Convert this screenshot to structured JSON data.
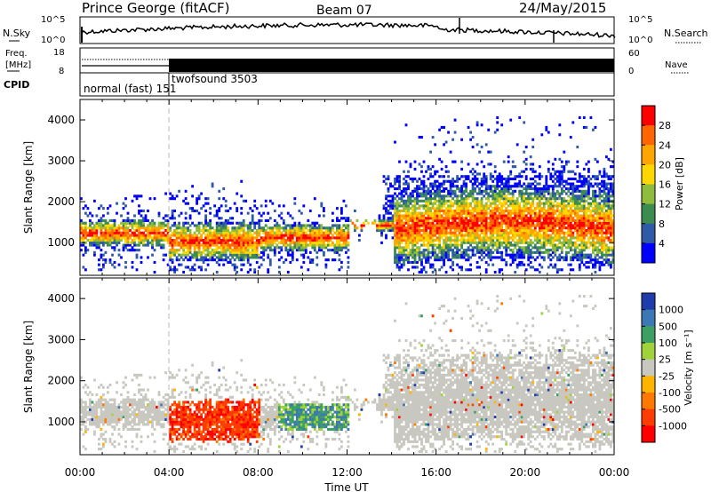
{
  "header": {
    "station": "Prince George (fitACF)",
    "beam": "Beam 07",
    "date": "24/May/2015"
  },
  "noise_panel": {
    "left_label": "N.Sky",
    "right_label": "N.Search",
    "left_ticks": [
      "10^5",
      "10^0"
    ],
    "right_ticks": [
      "10^5",
      "10^0"
    ]
  },
  "freq_panel": {
    "left_label_1": "Freq.",
    "left_label_2": "[MHz]",
    "right_label": "Nave",
    "left_ticks": [
      "18",
      "8"
    ],
    "right_ticks": [
      "60",
      "0"
    ]
  },
  "cpid_panel": {
    "label": "CPID",
    "modes": [
      {
        "name": "normal (fast) 151",
        "start_hour": 0
      },
      {
        "name": "twofsound 3503",
        "start_hour": 4
      }
    ]
  },
  "power_colorbar": {
    "label": "Power [dB]",
    "ticks": [
      "28",
      "24",
      "20",
      "16",
      "12",
      "8",
      "4"
    ],
    "colors": [
      "#ff0000",
      "#ff6600",
      "#ffa500",
      "#ffd700",
      "#8fbc3c",
      "#3c8c50",
      "#2e5aa8",
      "#0000ff"
    ]
  },
  "velocity_colorbar": {
    "label": "Velocity [m s⁻¹]",
    "ticks": [
      "1000",
      "500",
      "100",
      "25",
      "-25",
      "-100",
      "-500",
      "-1000"
    ],
    "colors": [
      "#1e3caa",
      "#3c78b4",
      "#3ca064",
      "#a0d23c",
      "#c8c8c0",
      "#ffb400",
      "#ff7800",
      "#ff3c00",
      "#ff0000"
    ]
  },
  "chart_data": [
    {
      "type": "heatmap",
      "title": "Power",
      "xlabel": "Time UT",
      "ylabel": "Slant Range [km]",
      "xlim": [
        0,
        24
      ],
      "ylim": [
        200,
        4500
      ],
      "x_ticks": [
        "00:00",
        "04:00",
        "08:00",
        "12:00",
        "16:00",
        "20:00",
        "00:00"
      ],
      "y_ticks": [
        "1000",
        "2000",
        "3000",
        "4000"
      ],
      "value_label": "Power [dB]",
      "value_range": [
        0,
        30
      ]
    },
    {
      "type": "heatmap",
      "title": "Velocity",
      "xlabel": "Time UT",
      "ylabel": "Slant Range [km]",
      "xlim": [
        0,
        24
      ],
      "ylim": [
        200,
        4500
      ],
      "x_ticks": [
        "00:00",
        "04:00",
        "08:00",
        "12:00",
        "16:00",
        "20:00",
        "00:00"
      ],
      "y_ticks": [
        "1000",
        "2000",
        "3000",
        "4000"
      ],
      "value_label": "Velocity [m s⁻¹]",
      "value_range": [
        -1000,
        1000
      ]
    }
  ],
  "x_axis": {
    "label": "Time UT",
    "ticks": [
      "00:00",
      "04:00",
      "08:00",
      "12:00",
      "16:00",
      "20:00",
      "00:00"
    ]
  }
}
